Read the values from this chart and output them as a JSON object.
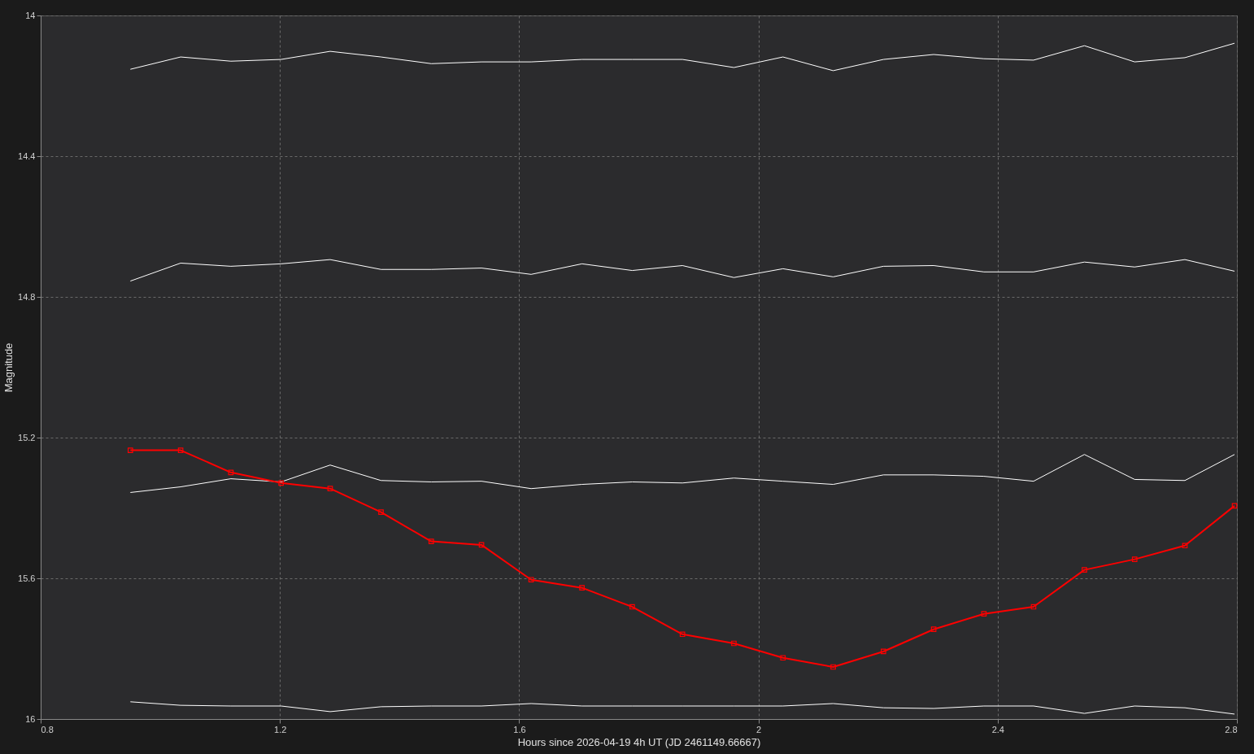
{
  "chart_data": {
    "type": "line",
    "xlabel": "Hours since 2026-04-19 4h UT (JD 2461149.66667)",
    "ylabel": "Magnitude",
    "x": [
      0.95,
      1.034,
      1.118,
      1.202,
      1.284,
      1.369,
      1.453,
      1.537,
      1.62,
      1.705,
      1.789,
      1.873,
      1.959,
      2.041,
      2.125,
      2.209,
      2.293,
      2.377,
      2.46,
      2.545,
      2.629,
      2.713,
      2.796
    ],
    "series": [
      {
        "color": "#ffffff",
        "marker": "none",
        "values": [
          14.153,
          14.118,
          14.13,
          14.125,
          14.102,
          14.118,
          14.137,
          14.132,
          14.132,
          14.125,
          14.125,
          14.125,
          14.148,
          14.118,
          14.157,
          14.125,
          14.111,
          14.123,
          14.127,
          14.086,
          14.132,
          14.12,
          14.079
        ]
      },
      {
        "color": "#ffffff",
        "marker": "none",
        "values": [
          14.755,
          14.704,
          14.713,
          14.706,
          14.694,
          14.722,
          14.722,
          14.718,
          14.736,
          14.706,
          14.725,
          14.711,
          14.745,
          14.72,
          14.743,
          14.713,
          14.711,
          14.729,
          14.729,
          14.701,
          14.715,
          14.694,
          14.727
        ]
      },
      {
        "color": "#ffffff",
        "marker": "none",
        "values": [
          15.356,
          15.34,
          15.317,
          15.326,
          15.278,
          15.322,
          15.326,
          15.324,
          15.345,
          15.333,
          15.326,
          15.329,
          15.315,
          15.324,
          15.333,
          15.306,
          15.306,
          15.31,
          15.324,
          15.248,
          15.319,
          15.322,
          15.248
        ]
      },
      {
        "color": "#ffffff",
        "marker": "none",
        "values": [
          15.951,
          15.961,
          15.963,
          15.963,
          15.979,
          15.965,
          15.963,
          15.963,
          15.956,
          15.963,
          15.963,
          15.963,
          15.963,
          15.963,
          15.956,
          15.968,
          15.97,
          15.963,
          15.963,
          15.984,
          15.963,
          15.968,
          15.986
        ]
      },
      {
        "color": "#ff0000",
        "marker": "square",
        "values": [
          15.236,
          15.236,
          15.299,
          15.329,
          15.345,
          15.412,
          15.495,
          15.505,
          15.604,
          15.627,
          15.681,
          15.759,
          15.785,
          15.826,
          15.852,
          15.808,
          15.745,
          15.701,
          15.681,
          15.576,
          15.546,
          15.507,
          15.394
        ]
      }
    ],
    "xlim": [
      0.8,
      2.8
    ],
    "xticks": [
      0.8,
      1.2,
      1.6,
      2,
      2.4,
      2.8
    ],
    "ylim": [
      16,
      14
    ],
    "yticks": [
      14,
      14.4,
      14.8,
      15.2,
      15.6,
      16
    ],
    "grid": true,
    "line_style": "solid"
  }
}
